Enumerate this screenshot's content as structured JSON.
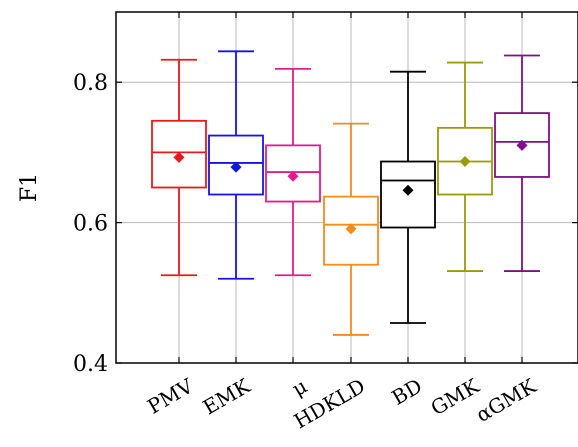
{
  "chart_data": {
    "type": "box",
    "ylabel": "F1",
    "ylim": [
      0.4,
      0.9
    ],
    "yticks": [
      0.4,
      0.6,
      0.8
    ],
    "grid": true,
    "categories": [
      "PMV",
      "EMK",
      "μ",
      "HDKLD",
      "BD",
      "GMK",
      "αGMK"
    ],
    "boxes": [
      {
        "name": "PMV",
        "whisker_low": 0.525,
        "q1": 0.65,
        "median": 0.7,
        "q3": 0.745,
        "whisker_high": 0.832,
        "mean": 0.693,
        "color": "#e8191d"
      },
      {
        "name": "EMK",
        "whisker_low": 0.52,
        "q1": 0.64,
        "median": 0.685,
        "q3": 0.724,
        "whisker_high": 0.844,
        "mean": 0.679,
        "color": "#1414e6"
      },
      {
        "name": "μ",
        "whisker_low": 0.525,
        "q1": 0.63,
        "median": 0.672,
        "q3": 0.71,
        "whisker_high": 0.819,
        "mean": 0.666,
        "color": "#e21b8e"
      },
      {
        "name": "HDKLD",
        "whisker_low": 0.44,
        "q1": 0.54,
        "median": 0.597,
        "q3": 0.637,
        "whisker_high": 0.741,
        "mean": 0.591,
        "color": "#f68b1f"
      },
      {
        "name": "BD",
        "whisker_low": 0.457,
        "q1": 0.593,
        "median": 0.66,
        "q3": 0.687,
        "whisker_high": 0.815,
        "mean": 0.646,
        "color": "#000000"
      },
      {
        "name": "GMK",
        "whisker_low": 0.531,
        "q1": 0.64,
        "median": 0.687,
        "q3": 0.735,
        "whisker_high": 0.828,
        "mean": 0.687,
        "color": "#9a9a0a"
      },
      {
        "name": "αGMK",
        "whisker_low": 0.531,
        "q1": 0.665,
        "median": 0.715,
        "q3": 0.756,
        "whisker_high": 0.838,
        "mean": 0.71,
        "color": "#800f88"
      }
    ]
  }
}
